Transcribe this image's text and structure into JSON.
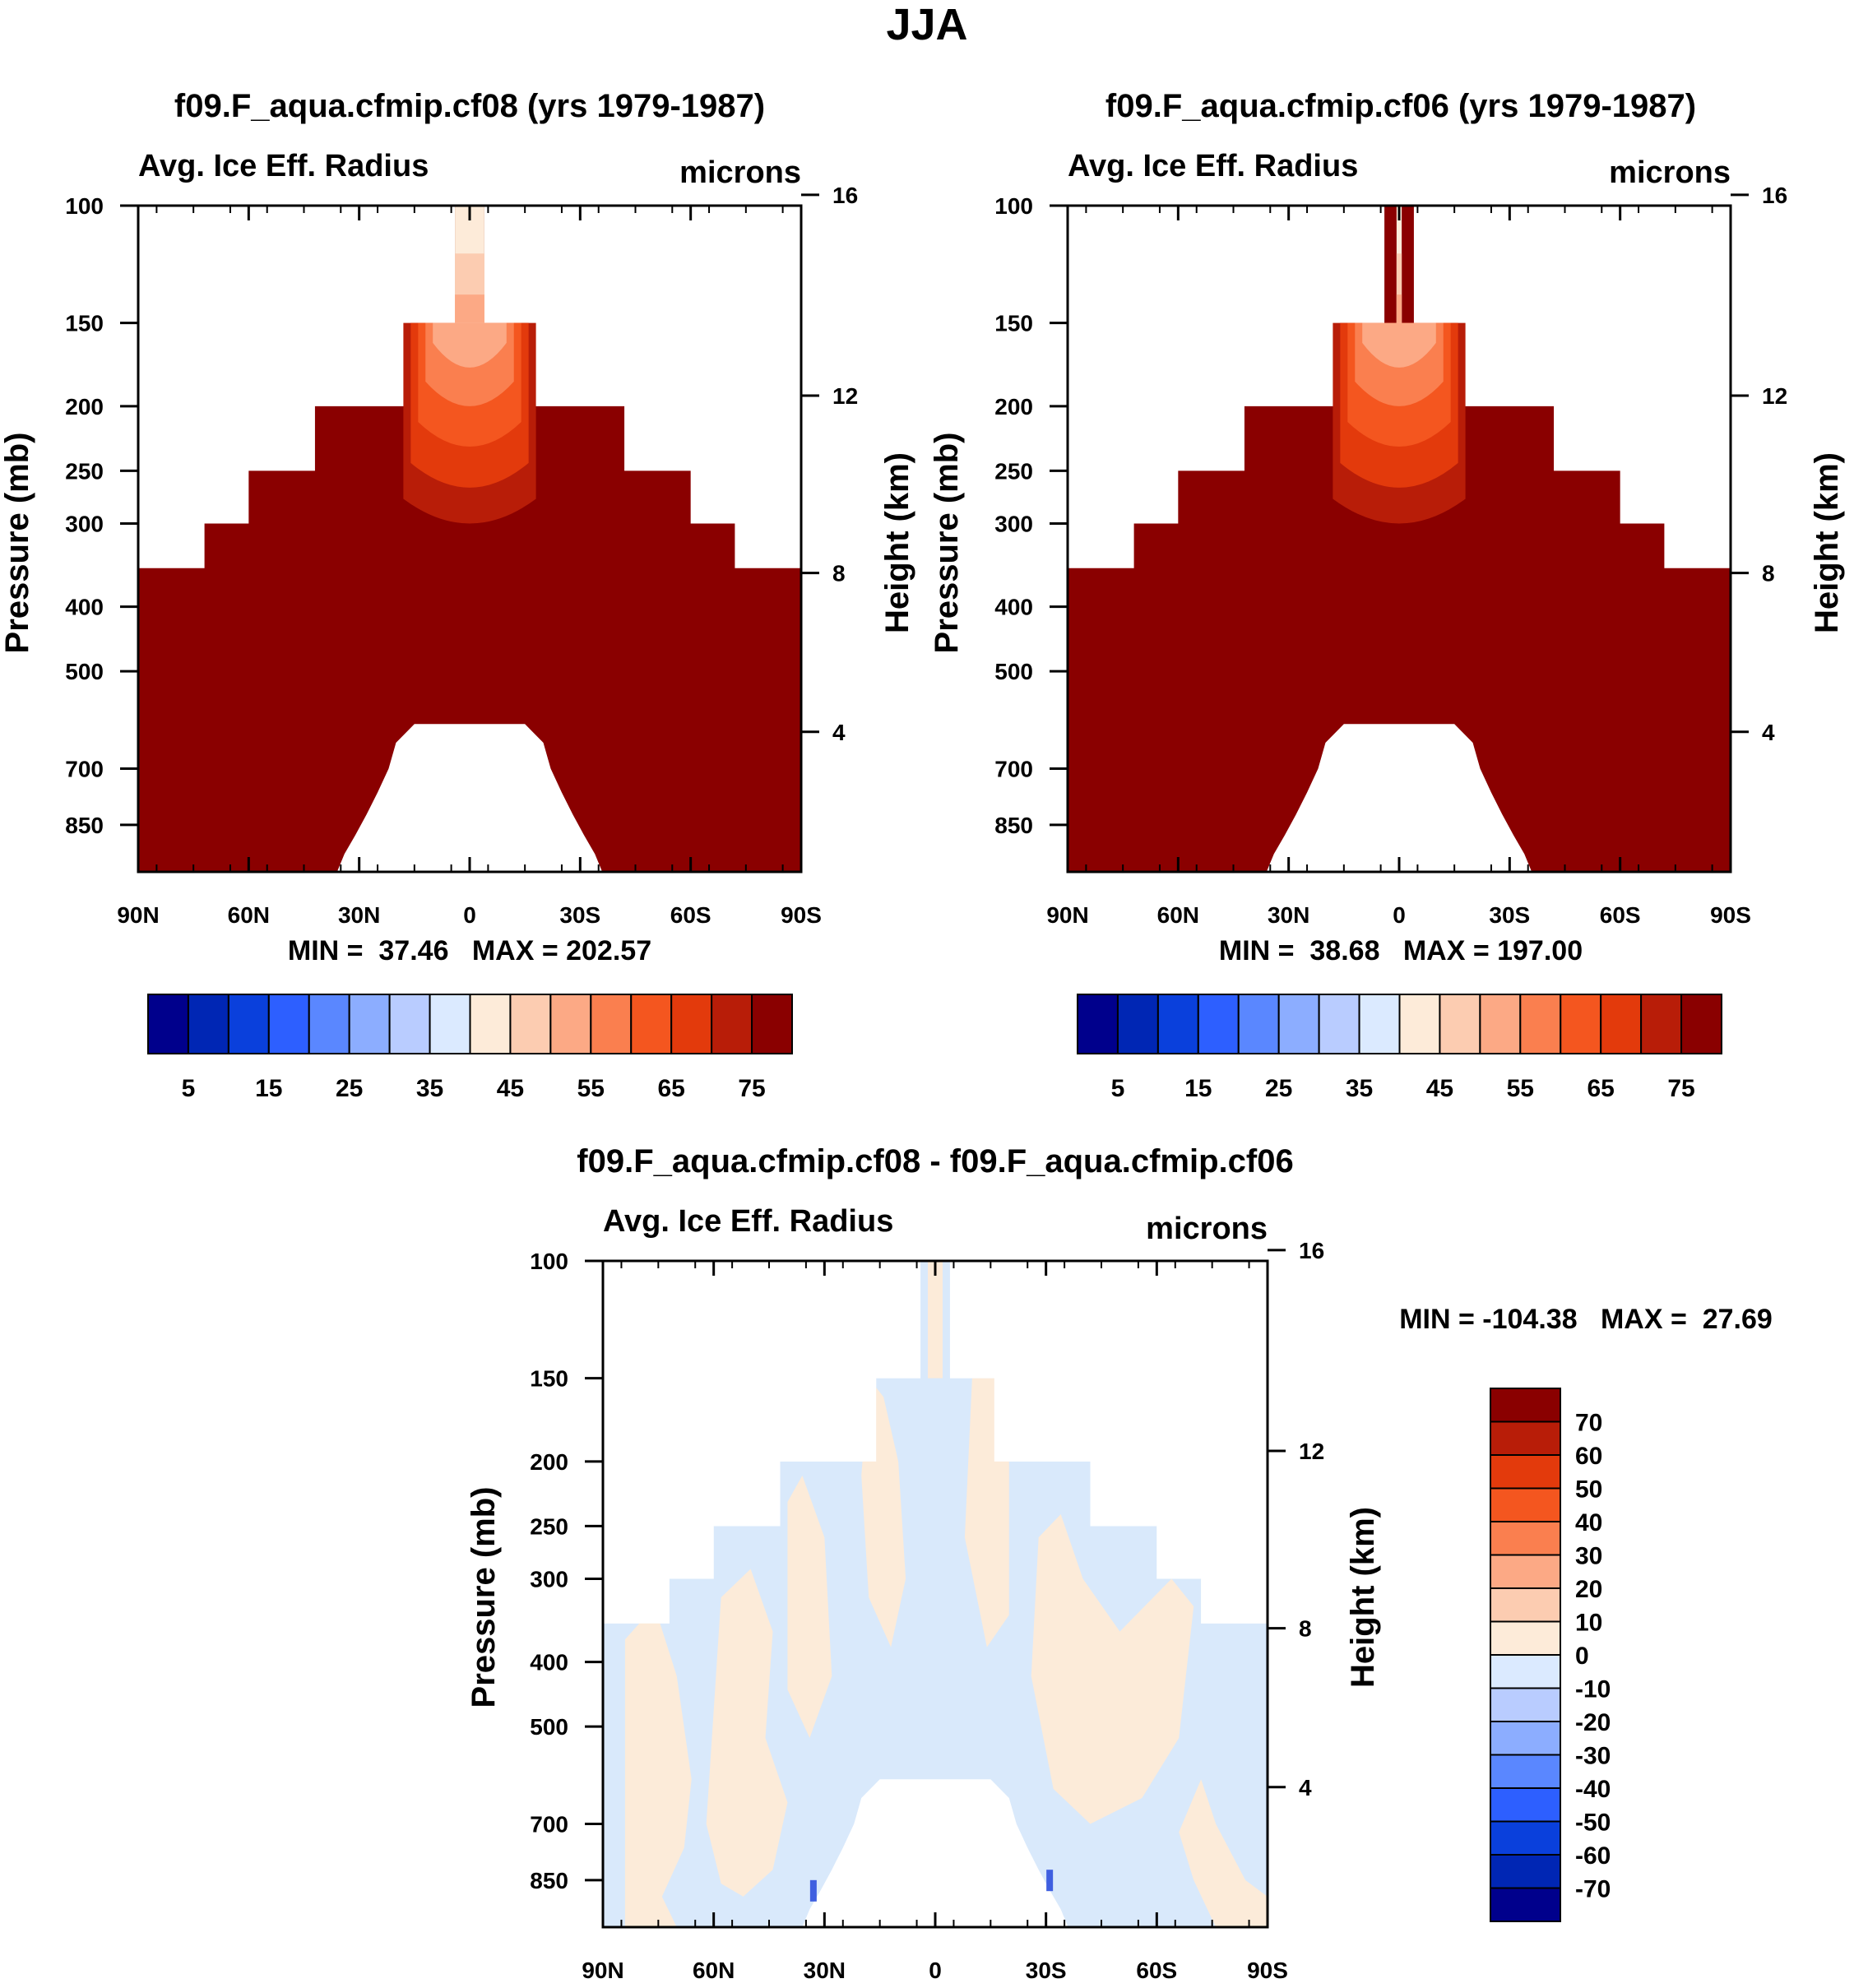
{
  "figure_title": "JJA",
  "chart_data": [
    {
      "type": "heatmap",
      "title": "f09.F_aqua.cfmip.cf08 (yrs 1979-1987)",
      "variable": "Avg. Ice Eff. Radius",
      "units": "microns",
      "ylabel": "Pressure (mb)",
      "y2label": "Height (km)",
      "x_ticks": [
        "90N",
        "60N",
        "30N",
        "0",
        "30S",
        "60S",
        "90S"
      ],
      "y_ticks": [
        "100",
        "150",
        "200",
        "250",
        "300",
        "400",
        "500",
        "700",
        "850"
      ],
      "y2_ticks": [
        "16",
        "12",
        "8",
        "4"
      ],
      "stats": "MIN =  37.46   MAX = 202.57",
      "min": 37.46,
      "max": 202.57,
      "cloud_top_levels_mb": [
        100,
        150,
        200,
        250,
        300,
        350
      ],
      "colorbar": {
        "labels": [
          "5",
          "15",
          "25",
          "35",
          "45",
          "55",
          "65",
          "75"
        ],
        "levels": [
          5,
          10,
          15,
          20,
          25,
          30,
          35,
          40,
          45,
          50,
          55,
          60,
          65,
          70,
          75
        ]
      }
    },
    {
      "type": "heatmap",
      "title": "f09.F_aqua.cfmip.cf06 (yrs 1979-1987)",
      "variable": "Avg. Ice Eff. Radius",
      "units": "microns",
      "ylabel": "Pressure (mb)",
      "y2label": "Height (km)",
      "x_ticks": [
        "90N",
        "60N",
        "30N",
        "0",
        "30S",
        "60S",
        "90S"
      ],
      "y_ticks": [
        "100",
        "150",
        "200",
        "250",
        "300",
        "400",
        "500",
        "700",
        "850"
      ],
      "y2_ticks": [
        "16",
        "12",
        "8",
        "4"
      ],
      "stats": "MIN =  38.68   MAX = 197.00",
      "min": 38.68,
      "max": 197.0,
      "cloud_top_levels_mb": [
        100,
        150,
        200,
        250,
        300,
        350
      ],
      "colorbar": {
        "labels": [
          "5",
          "15",
          "25",
          "35",
          "45",
          "55",
          "65",
          "75"
        ],
        "levels": [
          5,
          10,
          15,
          20,
          25,
          30,
          35,
          40,
          45,
          50,
          55,
          60,
          65,
          70,
          75
        ]
      }
    },
    {
      "type": "heatmap",
      "title": "f09.F_aqua.cfmip.cf08 - f09.F_aqua.cfmip.cf06",
      "variable": "Avg. Ice Eff. Radius",
      "units": "microns",
      "ylabel": "Pressure (mb)",
      "y2label": "Height (km)",
      "x_ticks": [
        "90N",
        "60N",
        "30N",
        "0",
        "30S",
        "60S",
        "90S"
      ],
      "y_ticks": [
        "100",
        "150",
        "200",
        "250",
        "300",
        "400",
        "500",
        "700",
        "850"
      ],
      "y2_ticks": [
        "16",
        "12",
        "8",
        "4"
      ],
      "stats": "MIN = -104.38   MAX =  27.69",
      "min": -104.38,
      "max": 27.69,
      "colorbar": {
        "labels": [
          "70",
          "60",
          "50",
          "40",
          "30",
          "20",
          "10",
          "0",
          "-10",
          "-20",
          "-30",
          "-40",
          "-50",
          "-60",
          "-70"
        ],
        "levels": [
          70,
          60,
          50,
          40,
          30,
          20,
          10,
          0,
          -10,
          -20,
          -30,
          -40,
          -50,
          -60,
          -70
        ]
      }
    }
  ],
  "palette": [
    "#00008c",
    "#0026b4",
    "#0a40dc",
    "#2d5fff",
    "#5a87ff",
    "#8cadff",
    "#b9ccff",
    "#dbeaff",
    "#fdebd9",
    "#fcccb1",
    "#fca985",
    "#fa7f4f",
    "#f4561f",
    "#e33a0c",
    "#b81d08",
    "#8a0000"
  ],
  "colors": {
    "field_bg": "#8a0000",
    "diff_pos": "#fcebd9",
    "diff_neg": "#d9e9fb",
    "diff_strong_neg": "#3f5fe0"
  }
}
